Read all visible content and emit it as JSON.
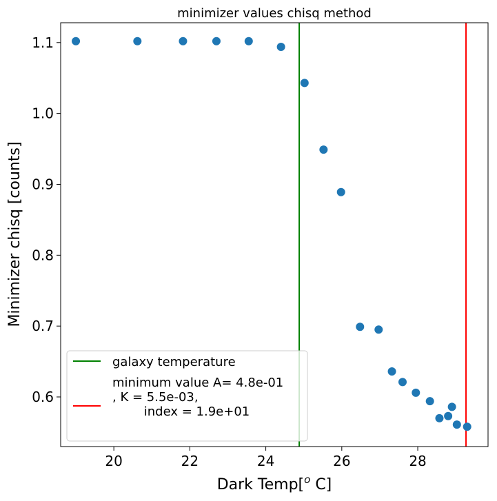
{
  "chart_data": {
    "type": "scatter",
    "title": "minimizer values chisq method",
    "xlabel_main": "Dark Temp[",
    "xlabel_sup": "o",
    "xlabel_tail": " C]",
    "ylabel": "Minimizer chisq [counts]",
    "xlim": [
      18.6,
      29.85
    ],
    "ylim": [
      0.53,
      1.128
    ],
    "xticks": [
      20,
      22,
      24,
      26,
      28
    ],
    "xtick_labels": [
      "20",
      "22",
      "24",
      "26",
      "28"
    ],
    "yticks": [
      0.6,
      0.7,
      0.8,
      0.9,
      1.0,
      1.1
    ],
    "ytick_labels": [
      "0.6",
      "0.7",
      "0.8",
      "0.9",
      "1.0",
      "1.1"
    ],
    "grid": false,
    "marker_color": "#1f77b4",
    "x": [
      19.0,
      20.62,
      21.82,
      22.7,
      23.55,
      24.4,
      25.02,
      25.52,
      25.98,
      26.48,
      26.97,
      27.32,
      27.6,
      27.95,
      28.32,
      28.57,
      28.8,
      28.9,
      29.03,
      29.3
    ],
    "y": [
      1.102,
      1.102,
      1.102,
      1.102,
      1.102,
      1.094,
      1.043,
      0.949,
      0.889,
      0.699,
      0.695,
      0.636,
      0.621,
      0.606,
      0.594,
      0.57,
      0.573,
      0.586,
      0.561,
      0.558
    ],
    "vlines": [
      {
        "x": 24.88,
        "color": "#008000"
      },
      {
        "x": 29.27,
        "color": "#ff0000"
      }
    ],
    "legend": {
      "position": "lower left",
      "entries": [
        {
          "color": "#008000",
          "lines": [
            "galaxy temperature"
          ]
        },
        {
          "color": "#ff0000",
          "lines": [
            "minimum value A= 4.8e-01",
            ", K = 5.5e-03,",
            "        index = 1.9e+01"
          ]
        }
      ]
    }
  }
}
